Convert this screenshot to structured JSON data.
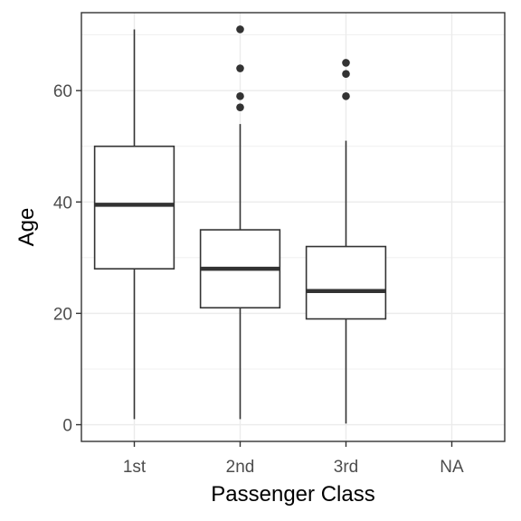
{
  "chart_data": {
    "type": "box",
    "categories": [
      "1st",
      "2nd",
      "3rd",
      "NA"
    ],
    "boxes": [
      {
        "category": "1st",
        "min": 1,
        "q1": 28,
        "median": 39.5,
        "q3": 50,
        "max": 71,
        "outliers": []
      },
      {
        "category": "2nd",
        "min": 1,
        "q1": 21,
        "median": 28,
        "q3": 35,
        "max": 54,
        "outliers": [
          57,
          59,
          64,
          71
        ]
      },
      {
        "category": "3rd",
        "min": 0.2,
        "q1": 19,
        "median": 24,
        "q3": 32,
        "max": 51,
        "outliers": [
          59,
          63,
          65
        ]
      }
    ],
    "xlabel": "Passenger Class",
    "ylabel": "Age",
    "ylim": [
      -3,
      74
    ],
    "yticks": [
      0,
      20,
      40,
      60
    ],
    "ytick_labels": [
      "0",
      "20",
      "40",
      "60"
    ],
    "grid": true,
    "colors": {
      "box": "#333333",
      "outlier": "#333333",
      "grid": "#ebebeb",
      "panel_border": "#333333"
    }
  }
}
